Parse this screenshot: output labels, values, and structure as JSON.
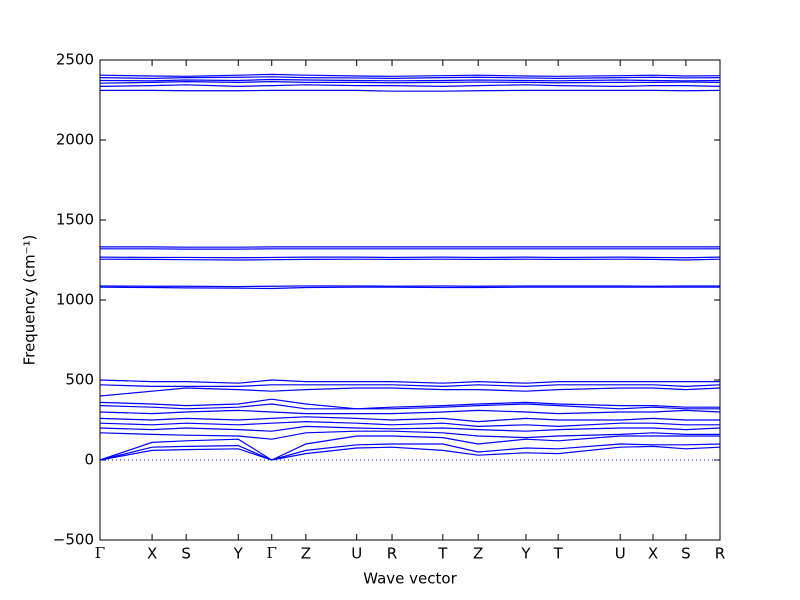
{
  "chart_data": {
    "type": "line",
    "xlabel": "Wave vector",
    "ylabel": "Frequency (cm⁻¹)",
    "color": "#0000ff",
    "zero_line": true,
    "x": [
      0,
      0.084,
      0.139,
      0.223,
      0.277,
      0.332,
      0.414,
      0.471,
      0.553,
      0.61,
      0.687,
      0.739,
      0.839,
      0.892,
      0.945,
      1.0
    ],
    "xlim": [
      0,
      1.0
    ],
    "xticks": [
      {
        "value": 0,
        "label": "Γ"
      },
      {
        "value": 0.084,
        "label": "X"
      },
      {
        "value": 0.139,
        "label": "S"
      },
      {
        "value": 0.223,
        "label": "Y"
      },
      {
        "value": 0.277,
        "label": "Γ"
      },
      {
        "value": 0.332,
        "label": "Z"
      },
      {
        "value": 0.414,
        "label": "U"
      },
      {
        "value": 0.471,
        "label": "R"
      },
      {
        "value": 0.553,
        "label": "T"
      },
      {
        "value": 0.61,
        "label": "Z"
      },
      {
        "value": 0.687,
        "label": "Y"
      },
      {
        "value": 0.739,
        "label": "T"
      },
      {
        "value": 0.839,
        "label": "U"
      },
      {
        "value": 0.892,
        "label": "X"
      },
      {
        "value": 0.945,
        "label": "S"
      },
      {
        "value": 1.0,
        "label": "R"
      }
    ],
    "ylim": [
      -500,
      2500
    ],
    "yticks": [
      {
        "value": -500,
        "label": "−500"
      },
      0,
      500,
      1000,
      1500,
      2000,
      2500
    ],
    "series": [
      {
        "values": [
          0,
          60,
          65,
          70,
          0,
          40,
          75,
          80,
          60,
          30,
          45,
          40,
          80,
          85,
          70,
          80
        ]
      },
      {
        "values": [
          0,
          80,
          85,
          90,
          0,
          60,
          95,
          100,
          100,
          50,
          75,
          70,
          100,
          95,
          95,
          100
        ]
      },
      {
        "values": [
          0,
          110,
          120,
          130,
          0,
          100,
          150,
          150,
          140,
          100,
          130,
          120,
          150,
          150,
          150,
          150
        ]
      },
      {
        "values": [
          170,
          160,
          155,
          150,
          130,
          170,
          180,
          180,
          170,
          150,
          140,
          150,
          160,
          170,
          160,
          160
        ]
      },
      {
        "values": [
          200,
          190,
          200,
          190,
          180,
          210,
          200,
          195,
          200,
          190,
          180,
          190,
          200,
          200,
          190,
          200
        ]
      },
      {
        "values": [
          230,
          220,
          230,
          220,
          230,
          240,
          230,
          220,
          230,
          210,
          220,
          210,
          230,
          230,
          220,
          220
        ]
      },
      {
        "values": [
          260,
          250,
          260,
          250,
          260,
          270,
          260,
          250,
          260,
          240,
          260,
          250,
          250,
          260,
          250,
          250
        ]
      },
      {
        "values": [
          300,
          290,
          300,
          310,
          300,
          290,
          290,
          290,
          300,
          310,
          300,
          290,
          300,
          300,
          310,
          300
        ]
      },
      {
        "values": [
          340,
          330,
          320,
          330,
          350,
          320,
          320,
          320,
          330,
          340,
          350,
          340,
          320,
          330,
          320,
          320
        ]
      },
      {
        "values": [
          360,
          350,
          340,
          350,
          380,
          350,
          320,
          330,
          340,
          350,
          360,
          350,
          340,
          340,
          330,
          330
        ]
      },
      {
        "values": [
          400,
          430,
          450,
          440,
          430,
          440,
          450,
          450,
          440,
          440,
          430,
          440,
          450,
          450,
          440,
          450
        ]
      },
      {
        "values": [
          470,
          460,
          460,
          460,
          470,
          470,
          470,
          470,
          460,
          470,
          460,
          470,
          470,
          470,
          460,
          470
        ]
      },
      {
        "values": [
          500,
          490,
          490,
          480,
          500,
          490,
          490,
          490,
          480,
          490,
          480,
          490,
          490,
          490,
          490,
          490
        ]
      },
      {
        "values": [
          1080,
          1078,
          1076,
          1074,
          1072,
          1078,
          1080,
          1080,
          1078,
          1078,
          1080,
          1080,
          1080,
          1080,
          1080,
          1080
        ]
      },
      {
        "values": [
          1088,
          1086,
          1086,
          1084,
          1086,
          1088,
          1088,
          1086,
          1088,
          1086,
          1088,
          1088,
          1088,
          1086,
          1088,
          1088
        ]
      },
      {
        "values": [
          1255,
          1254,
          1252,
          1250,
          1252,
          1254,
          1255,
          1254,
          1255,
          1254,
          1255,
          1254,
          1255,
          1254,
          1250,
          1255
        ]
      },
      {
        "values": [
          1268,
          1266,
          1266,
          1264,
          1266,
          1268,
          1268,
          1266,
          1268,
          1266,
          1268,
          1266,
          1268,
          1266,
          1264,
          1268
        ]
      },
      {
        "values": [
          1320,
          1320,
          1318,
          1318,
          1320,
          1320,
          1320,
          1320,
          1320,
          1320,
          1320,
          1320,
          1320,
          1320,
          1320,
          1320
        ]
      },
      {
        "values": [
          1332,
          1332,
          1330,
          1330,
          1332,
          1332,
          1332,
          1332,
          1332,
          1332,
          1332,
          1332,
          1332,
          1332,
          1332,
          1332
        ]
      },
      {
        "values": [
          2310,
          2310,
          2308,
          2308,
          2310,
          2310,
          2310,
          2305,
          2305,
          2308,
          2310,
          2310,
          2310,
          2310,
          2308,
          2310
        ]
      },
      {
        "values": [
          2335,
          2340,
          2345,
          2335,
          2340,
          2345,
          2340,
          2340,
          2335,
          2340,
          2345,
          2340,
          2335,
          2340,
          2340,
          2335
        ]
      },
      {
        "values": [
          2355,
          2360,
          2365,
          2360,
          2365,
          2360,
          2360,
          2358,
          2360,
          2362,
          2360,
          2358,
          2360,
          2360,
          2362,
          2360
        ]
      },
      {
        "values": [
          2372,
          2370,
          2375,
          2372,
          2378,
          2375,
          2372,
          2370,
          2372,
          2375,
          2372,
          2370,
          2375,
          2372,
          2370,
          2372
        ]
      },
      {
        "values": [
          2390,
          2385,
          2390,
          2392,
          2395,
          2390,
          2388,
          2385,
          2390,
          2392,
          2388,
          2385,
          2390,
          2392,
          2388,
          2390
        ]
      },
      {
        "values": [
          2405,
          2400,
          2398,
          2405,
          2410,
          2405,
          2400,
          2398,
          2402,
          2405,
          2400,
          2398,
          2402,
          2405,
          2400,
          2402
        ]
      }
    ]
  }
}
